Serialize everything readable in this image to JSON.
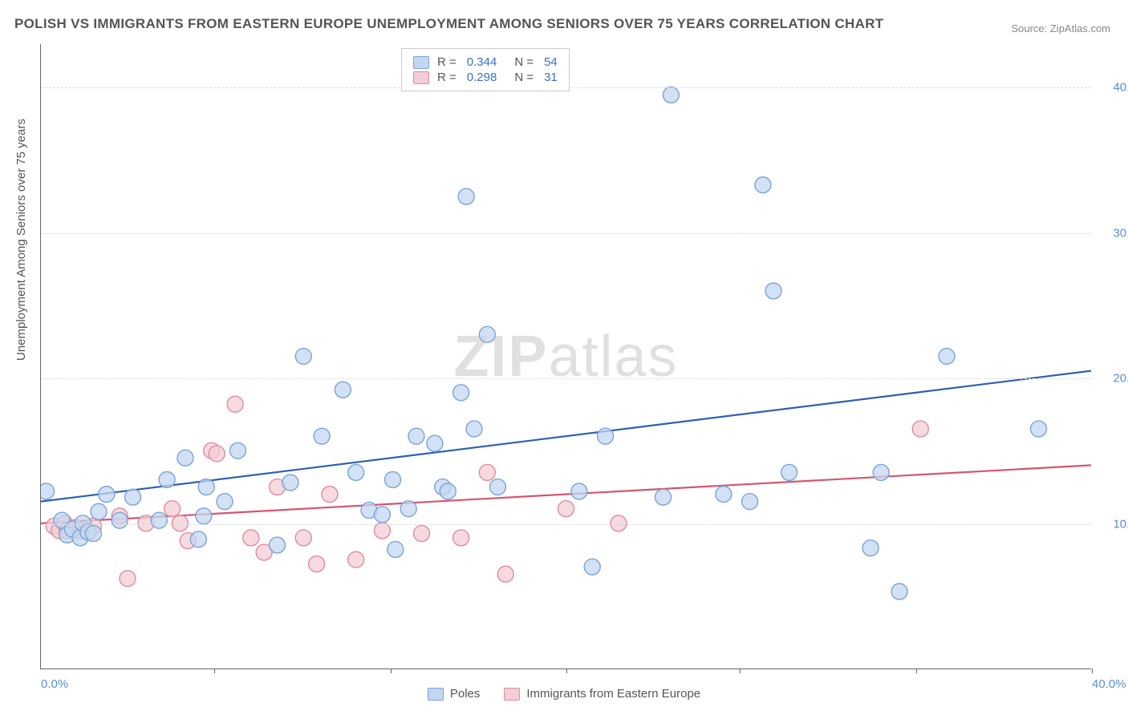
{
  "title": "POLISH VS IMMIGRANTS FROM EASTERN EUROPE UNEMPLOYMENT AMONG SENIORS OVER 75 YEARS CORRELATION CHART",
  "source": "Source: ZipAtlas.com",
  "ylabel": "Unemployment Among Seniors over 75 years",
  "watermark_a": "ZIP",
  "watermark_b": "atlas",
  "chart": {
    "type": "scatter",
    "xlim": [
      0,
      40
    ],
    "ylim": [
      0,
      43
    ],
    "ytick_values": [
      10,
      20,
      30,
      40
    ],
    "ytick_labels": [
      "10.0%",
      "20.0%",
      "30.0%",
      "40.0%"
    ],
    "xtick_values": [
      0,
      40
    ],
    "xtick_labels": [
      "0.0%",
      "40.0%"
    ],
    "xtick_marks": [
      6.6,
      13.3,
      20,
      26.6,
      33.3,
      40
    ],
    "background_color": "#ffffff",
    "grid_color": "#dddddd",
    "axis_color": "#666666",
    "label_color": "#555555",
    "tick_label_color": "#5b8dd6",
    "series": {
      "poles": {
        "label": "Poles",
        "fill": "#c3d7f0",
        "stroke": "#7ba3d9",
        "opacity": 0.75,
        "r_label": "R =",
        "r_value": "0.344",
        "n_label": "N =",
        "n_value": "54",
        "trend": {
          "x1": 0,
          "y1": 11.5,
          "x2": 40,
          "y2": 20.5,
          "stroke": "#2e5fb3",
          "width": 2.2
        },
        "points": [
          [
            0.2,
            12.2
          ],
          [
            0.8,
            10.2
          ],
          [
            1.0,
            9.2
          ],
          [
            1.2,
            9.6
          ],
          [
            1.5,
            9.0
          ],
          [
            1.6,
            10.0
          ],
          [
            1.8,
            9.4
          ],
          [
            2.0,
            9.3
          ],
          [
            2.2,
            10.8
          ],
          [
            2.5,
            12.0
          ],
          [
            3.0,
            10.2
          ],
          [
            3.5,
            11.8
          ],
          [
            4.5,
            10.2
          ],
          [
            4.8,
            13.0
          ],
          [
            5.5,
            14.5
          ],
          [
            6.0,
            8.9
          ],
          [
            6.2,
            10.5
          ],
          [
            6.3,
            12.5
          ],
          [
            7.0,
            11.5
          ],
          [
            7.5,
            15.0
          ],
          [
            9.0,
            8.5
          ],
          [
            9.5,
            12.8
          ],
          [
            10.0,
            21.5
          ],
          [
            10.7,
            16.0
          ],
          [
            11.5,
            19.2
          ],
          [
            12.0,
            13.5
          ],
          [
            12.5,
            10.9
          ],
          [
            13.0,
            10.6
          ],
          [
            13.4,
            13.0
          ],
          [
            13.5,
            8.2
          ],
          [
            14.0,
            11.0
          ],
          [
            14.3,
            16.0
          ],
          [
            15.0,
            15.5
          ],
          [
            15.3,
            12.5
          ],
          [
            15.5,
            12.2
          ],
          [
            16.0,
            19.0
          ],
          [
            16.2,
            32.5
          ],
          [
            16.5,
            16.5
          ],
          [
            17.0,
            23.0
          ],
          [
            17.4,
            12.5
          ],
          [
            20.5,
            12.2
          ],
          [
            21.0,
            7.0
          ],
          [
            21.5,
            16.0
          ],
          [
            23.7,
            11.8
          ],
          [
            24.0,
            39.5
          ],
          [
            26.0,
            12.0
          ],
          [
            27.0,
            11.5
          ],
          [
            27.5,
            33.3
          ],
          [
            27.9,
            26.0
          ],
          [
            28.5,
            13.5
          ],
          [
            31.6,
            8.3
          ],
          [
            32.0,
            13.5
          ],
          [
            32.7,
            5.3
          ],
          [
            34.5,
            21.5
          ],
          [
            38.0,
            16.5
          ]
        ]
      },
      "immigrants": {
        "label": "Immigrants from Eastern Europe",
        "fill": "#f3cdd6",
        "stroke": "#e08aa0",
        "opacity": 0.75,
        "r_label": "R =",
        "r_value": "0.298",
        "n_label": "N =",
        "n_value": "31",
        "trend": {
          "x1": 0,
          "y1": 10.0,
          "x2": 40,
          "y2": 14.0,
          "stroke": "#d6546f",
          "width": 2.2
        },
        "points": [
          [
            0.5,
            9.8
          ],
          [
            0.7,
            9.5
          ],
          [
            0.9,
            10.0
          ],
          [
            1.0,
            9.5
          ],
          [
            1.3,
            9.7
          ],
          [
            1.5,
            9.5
          ],
          [
            2.0,
            9.8
          ],
          [
            3.0,
            10.5
          ],
          [
            3.3,
            6.2
          ],
          [
            4.0,
            10.0
          ],
          [
            5.0,
            11.0
          ],
          [
            5.3,
            10.0
          ],
          [
            5.6,
            8.8
          ],
          [
            6.5,
            15.0
          ],
          [
            6.7,
            14.8
          ],
          [
            7.4,
            18.2
          ],
          [
            8.0,
            9.0
          ],
          [
            8.5,
            8.0
          ],
          [
            9.0,
            12.5
          ],
          [
            10.0,
            9.0
          ],
          [
            10.5,
            7.2
          ],
          [
            11.0,
            12.0
          ],
          [
            12.0,
            7.5
          ],
          [
            13.0,
            9.5
          ],
          [
            14.5,
            9.3
          ],
          [
            16.0,
            9.0
          ],
          [
            17.0,
            13.5
          ],
          [
            17.7,
            6.5
          ],
          [
            20.0,
            11.0
          ],
          [
            22.0,
            10.0
          ],
          [
            33.5,
            16.5
          ]
        ]
      }
    }
  },
  "bottom_legend": [
    {
      "label": "Poles",
      "fill": "#c3d7f0",
      "stroke": "#7ba3d9"
    },
    {
      "label": "Immigrants from Eastern Europe",
      "fill": "#f3cdd6",
      "stroke": "#e08aa0"
    }
  ]
}
